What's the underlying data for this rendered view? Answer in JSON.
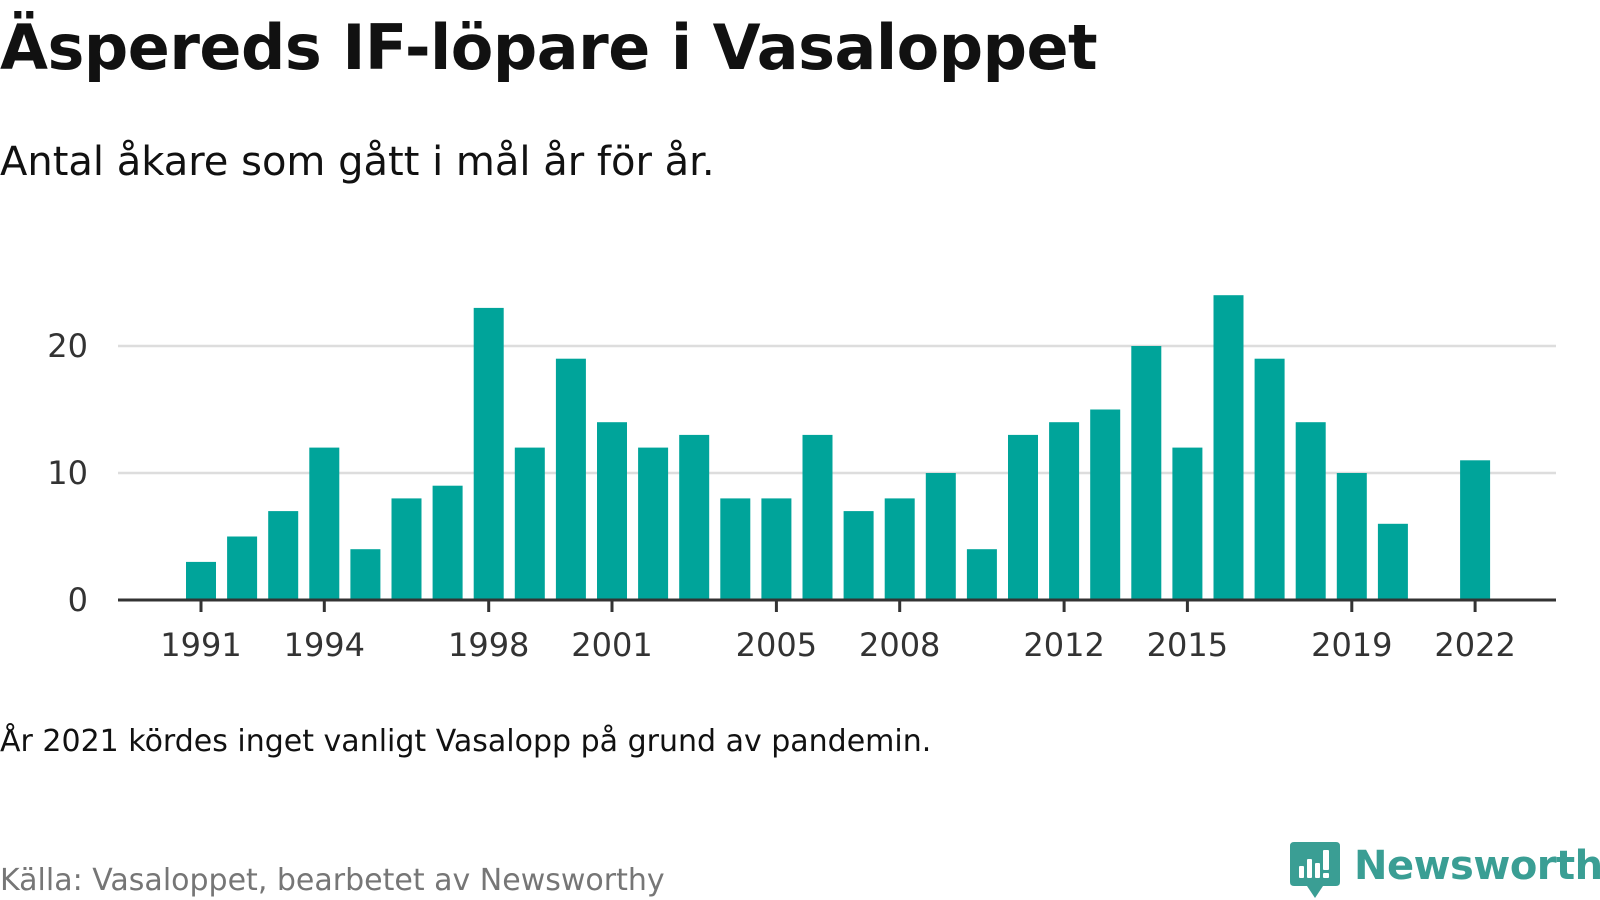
{
  "title": "Äspereds IF-löpare i Vasaloppet",
  "subtitle": "Antal åkare som gått i mål år för år.",
  "note": "År 2021 kördes inget vanligt Vasalopp på grund av pandemin.",
  "source": "Källa: Vasaloppet, bearbetet av Newsworthy",
  "logo": {
    "text": "Newsworthy",
    "color": "#3a9e94",
    "icon": "newsworthy-logo-icon"
  },
  "chart_data": {
    "type": "bar",
    "x": [
      1991,
      1992,
      1993,
      1994,
      1995,
      1996,
      1997,
      1998,
      1999,
      2000,
      2001,
      2002,
      2003,
      2004,
      2005,
      2006,
      2007,
      2008,
      2009,
      2010,
      2011,
      2012,
      2013,
      2014,
      2015,
      2016,
      2017,
      2018,
      2019,
      2020,
      2021,
      2022
    ],
    "values": [
      3,
      5,
      7,
      12,
      4,
      8,
      9,
      23,
      12,
      19,
      14,
      12,
      13,
      8,
      8,
      13,
      7,
      8,
      10,
      4,
      13,
      14,
      15,
      20,
      12,
      24,
      19,
      14,
      10,
      6,
      0,
      11
    ],
    "xticks": [
      "1991",
      "1994",
      "1998",
      "2001",
      "2005",
      "2008",
      "2012",
      "2015",
      "2019",
      "2022"
    ],
    "yticks": [
      "0",
      "10",
      "20"
    ],
    "ylim": [
      0,
      25
    ],
    "xlabel": "",
    "ylabel": "",
    "grid": "horizontal",
    "legend": "none",
    "bar_color": "#00a49a",
    "grid_color": "#dddddd",
    "axis_color": "#333333"
  }
}
